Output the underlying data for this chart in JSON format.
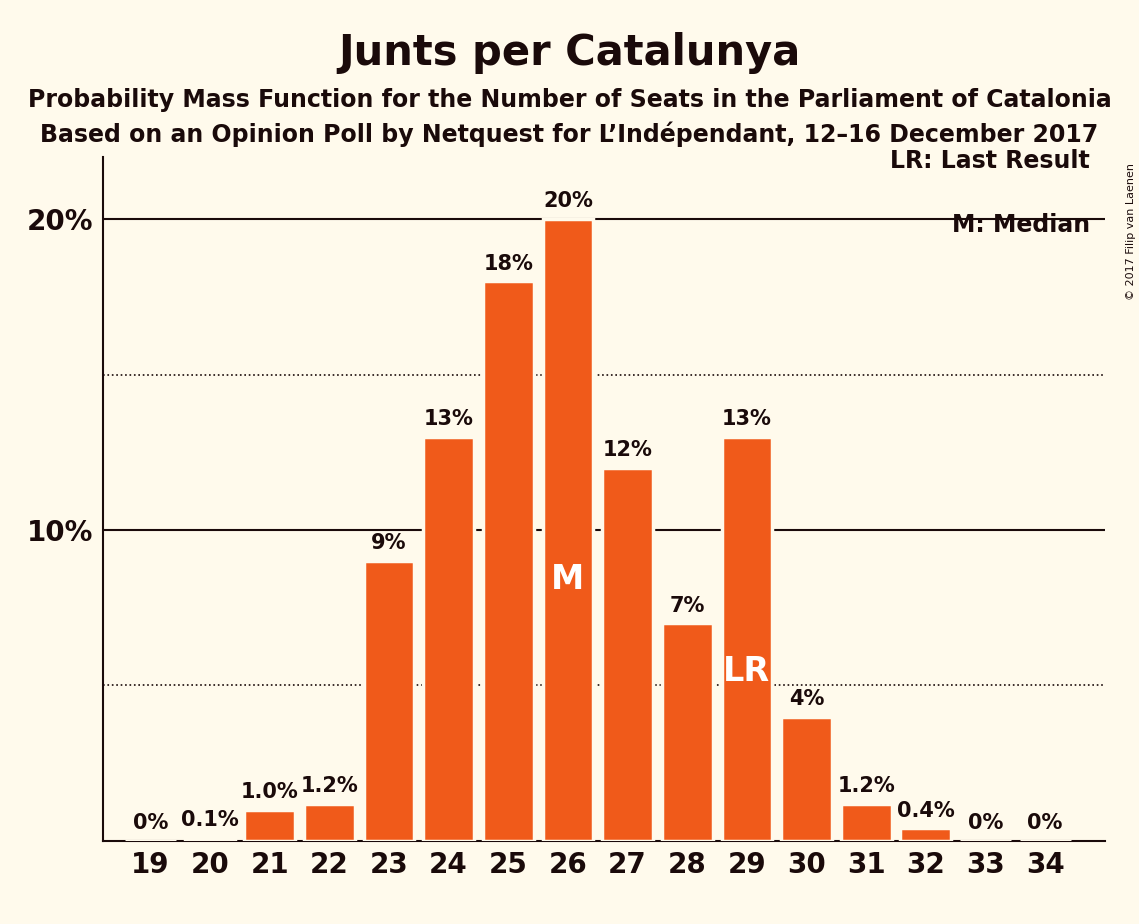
{
  "title": "Junts per Catalunya",
  "subtitle1": "Probability Mass Function for the Number of Seats in the Parliament of Catalonia",
  "subtitle2": "Based on an Opinion Poll by Netquest for L’Indépendant, 12–16 December 2017",
  "copyright": "© 2017 Filip van Laenen",
  "seats": [
    19,
    20,
    21,
    22,
    23,
    24,
    25,
    26,
    27,
    28,
    29,
    30,
    31,
    32,
    33,
    34
  ],
  "probabilities": [
    0.0,
    0.1,
    1.0,
    1.2,
    9.0,
    13.0,
    18.0,
    20.0,
    12.0,
    7.0,
    13.0,
    4.0,
    1.2,
    0.4,
    0.0,
    0.0
  ],
  "bar_color": "#F05A1A",
  "bar_edge_color": "#FFFAEC",
  "background_color": "#FFFAEC",
  "text_color": "#1a0a0a",
  "median_seat": 26,
  "last_result_seat": 29,
  "label_color_above": "#1a0a0a",
  "label_color_inside": "#FFFFFF",
  "ylim": [
    0,
    22
  ],
  "grid_lines_dotted": [
    5,
    15
  ],
  "grid_lines_solid": [
    10,
    20
  ],
  "median_label": "M",
  "lr_label": "LR",
  "legend_lr": "LR: Last Result",
  "legend_m": "M: Median",
  "title_fontsize": 30,
  "subtitle_fontsize": 17,
  "tick_fontsize": 20,
  "bar_label_fontsize": 15,
  "inside_label_fontsize": 24,
  "legend_fontsize": 17,
  "copyright_fontsize": 8
}
